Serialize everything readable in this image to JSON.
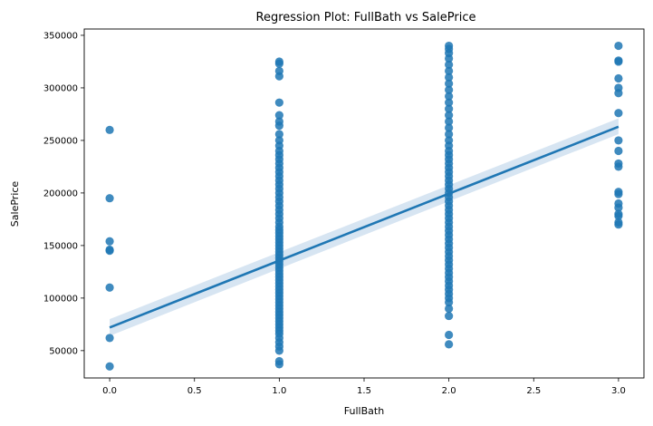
{
  "chart_data": {
    "type": "scatter",
    "title": "Regression Plot: FullBath vs SalePrice",
    "xlabel": "FullBath",
    "ylabel": "SalePrice",
    "xlim": [
      -0.15,
      3.15
    ],
    "ylim": [
      24000,
      356000
    ],
    "grid": false,
    "legend": "none",
    "point_color": "#1f77b4",
    "band_color": "#c9dcee",
    "x_ticks": [
      0.0,
      0.5,
      1.0,
      1.5,
      2.0,
      2.5,
      3.0
    ],
    "x_tick_labels": [
      "0.0",
      "0.5",
      "1.0",
      "1.5",
      "2.0",
      "2.5",
      "3.0"
    ],
    "y_ticks": [
      50000,
      100000,
      150000,
      200000,
      250000,
      300000,
      350000
    ],
    "y_tick_labels": [
      "50000",
      "100000",
      "150000",
      "200000",
      "250000",
      "300000",
      "350000"
    ],
    "regression": {
      "x": [
        0,
        3
      ],
      "y": [
        72000,
        263000
      ],
      "ci_lower": [
        64000,
        256000
      ],
      "ci_upper": [
        80000,
        271000
      ]
    },
    "points": [
      {
        "x": 0,
        "y": [
          260000,
          195000,
          154000,
          146000,
          145000,
          110000,
          62000,
          35000
        ]
      },
      {
        "x": 1,
        "y": [
          325000,
          323000,
          316000,
          311000,
          286000,
          274000,
          268000,
          264000,
          256000,
          250000,
          245000,
          240000,
          236000,
          232000,
          228000,
          224000,
          220000,
          216000,
          212000,
          208000,
          204000,
          200000,
          196000,
          192000,
          188000,
          184000,
          180000,
          176000,
          172000,
          168000,
          165000,
          162000,
          159000,
          156000,
          153000,
          150000,
          147000,
          144000,
          141000,
          138000,
          135000,
          132000,
          129000,
          126000,
          123000,
          120000,
          117000,
          114000,
          111000,
          108000,
          105000,
          102000,
          99000,
          96000,
          93000,
          90000,
          87000,
          84000,
          81000,
          78000,
          75000,
          72000,
          69000,
          66000,
          62000,
          58000,
          54000,
          50000,
          40000,
          37000
        ]
      },
      {
        "x": 2,
        "y": [
          340000,
          337000,
          333000,
          328000,
          322000,
          316000,
          310000,
          304000,
          298000,
          292000,
          286000,
          280000,
          274000,
          268000,
          262000,
          256000,
          250000,
          245000,
          240000,
          236000,
          232000,
          228000,
          224000,
          220000,
          216000,
          212000,
          208000,
          204000,
          200000,
          196000,
          192000,
          188000,
          184000,
          180000,
          176000,
          172000,
          168000,
          164000,
          160000,
          156000,
          152000,
          148000,
          144000,
          140000,
          136000,
          132000,
          128000,
          124000,
          120000,
          116000,
          112000,
          108000,
          104000,
          100000,
          96000,
          90000,
          83000,
          65000,
          56000
        ]
      },
      {
        "x": 3,
        "y": [
          340000,
          326000,
          325000,
          309000,
          300000,
          295000,
          276000,
          250000,
          240000,
          228000,
          225000,
          201000,
          199000,
          190000,
          186000,
          180000,
          178000,
          172000,
          170000
        ]
      }
    ]
  }
}
